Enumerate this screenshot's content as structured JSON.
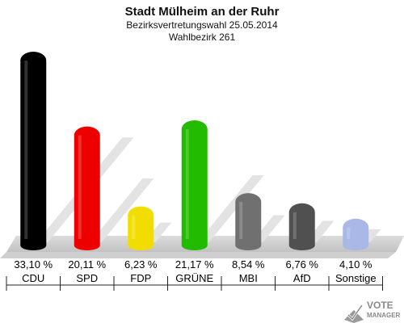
{
  "header": {
    "title": "Stadt Mülheim an der Ruhr",
    "subtitle": "Bezirksvertretungswahl 25.05.2014",
    "district": "Wahlbezirk 261"
  },
  "logo": {
    "line1": "VOTE",
    "line2": "MANAGER"
  },
  "chart_data": {
    "type": "bar",
    "categories": [
      "CDU",
      "SPD",
      "FDP",
      "GRÜNE",
      "MBI",
      "AfD",
      "Sonstige"
    ],
    "values": [
      33.1,
      20.11,
      6.23,
      21.17,
      8.54,
      6.76,
      4.1
    ],
    "value_labels": [
      "33,10 %",
      "20,11 %",
      "6,23 %",
      "21,17 %",
      "8,54 %",
      "6,76 %",
      "4,10 %"
    ],
    "colors": [
      "#000000",
      "#ee0000",
      "#f2dd00",
      "#22bb00",
      "#707070",
      "#505050",
      "#a9b8e6"
    ],
    "ylim": [
      0,
      33.1
    ],
    "grid": false,
    "legend": "none"
  }
}
